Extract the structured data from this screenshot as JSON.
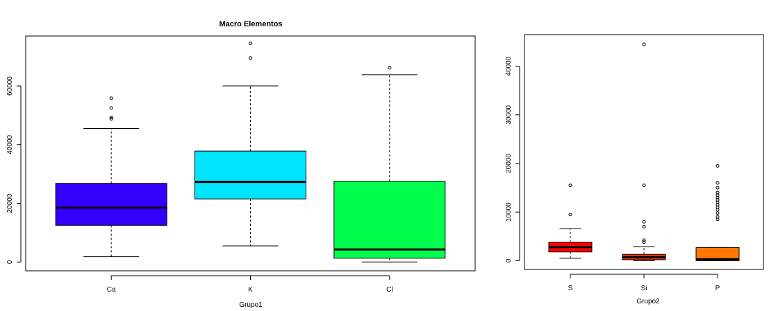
{
  "chart_data": [
    {
      "type": "box",
      "title": "Macro Elementos",
      "xlabel": "Grupo1",
      "ylabel": "",
      "ylim": [
        -3000,
        77000
      ],
      "yticks": [
        0,
        20000,
        40000,
        60000
      ],
      "ytick_labels": [
        "0",
        "20000",
        "40000",
        "60000"
      ],
      "boxes": [
        {
          "name": "Ca",
          "color": "#3300FF",
          "whisker_low": 1800,
          "q1": 12500,
          "median": 18500,
          "q3": 26800,
          "whisker_high": 45500,
          "outliers": [
            48800,
            49200,
            52500,
            55800
          ]
        },
        {
          "name": "K",
          "color": "#00E5FF",
          "whisker_low": 5500,
          "q1": 21500,
          "median": 27300,
          "q3": 37800,
          "whisker_high": 60000,
          "outliers": [
            69500,
            74500
          ]
        },
        {
          "name": "Cl",
          "color": "#00FF4D",
          "whisker_low": 0,
          "q1": 1300,
          "median": 4300,
          "q3": 27500,
          "whisker_high": 63800,
          "outliers": [
            66200
          ]
        }
      ]
    },
    {
      "type": "box",
      "title": "",
      "xlabel": "Grupo2",
      "ylabel": "",
      "ylim": [
        -1800,
        46500
      ],
      "yticks": [
        0,
        10000,
        20000,
        30000,
        40000
      ],
      "ytick_labels": [
        "0",
        "10000",
        "20000",
        "30000",
        "40000"
      ],
      "boxes": [
        {
          "name": "S",
          "color": "#FF0000",
          "whisker_low": 500,
          "q1": 1800,
          "median": 2800,
          "q3": 3800,
          "whisker_high": 6600,
          "outliers": [
            9500,
            15500
          ]
        },
        {
          "name": "Si",
          "color": "#FF3300",
          "whisker_low": 0,
          "q1": 200,
          "median": 700,
          "q3": 1300,
          "whisker_high": 2900,
          "outliers": [
            3800,
            4200,
            7000,
            8000,
            15500,
            44500
          ]
        },
        {
          "name": "P",
          "color": "#FF7700",
          "whisker_low": 0,
          "q1": 0,
          "median": 300,
          "q3": 2700,
          "whisker_high": 2700,
          "outliers": [
            8500,
            9000,
            9800,
            10500,
            11000,
            11500,
            12000,
            12500,
            13000,
            13500,
            14000,
            15000,
            16000,
            19500
          ]
        }
      ]
    }
  ]
}
